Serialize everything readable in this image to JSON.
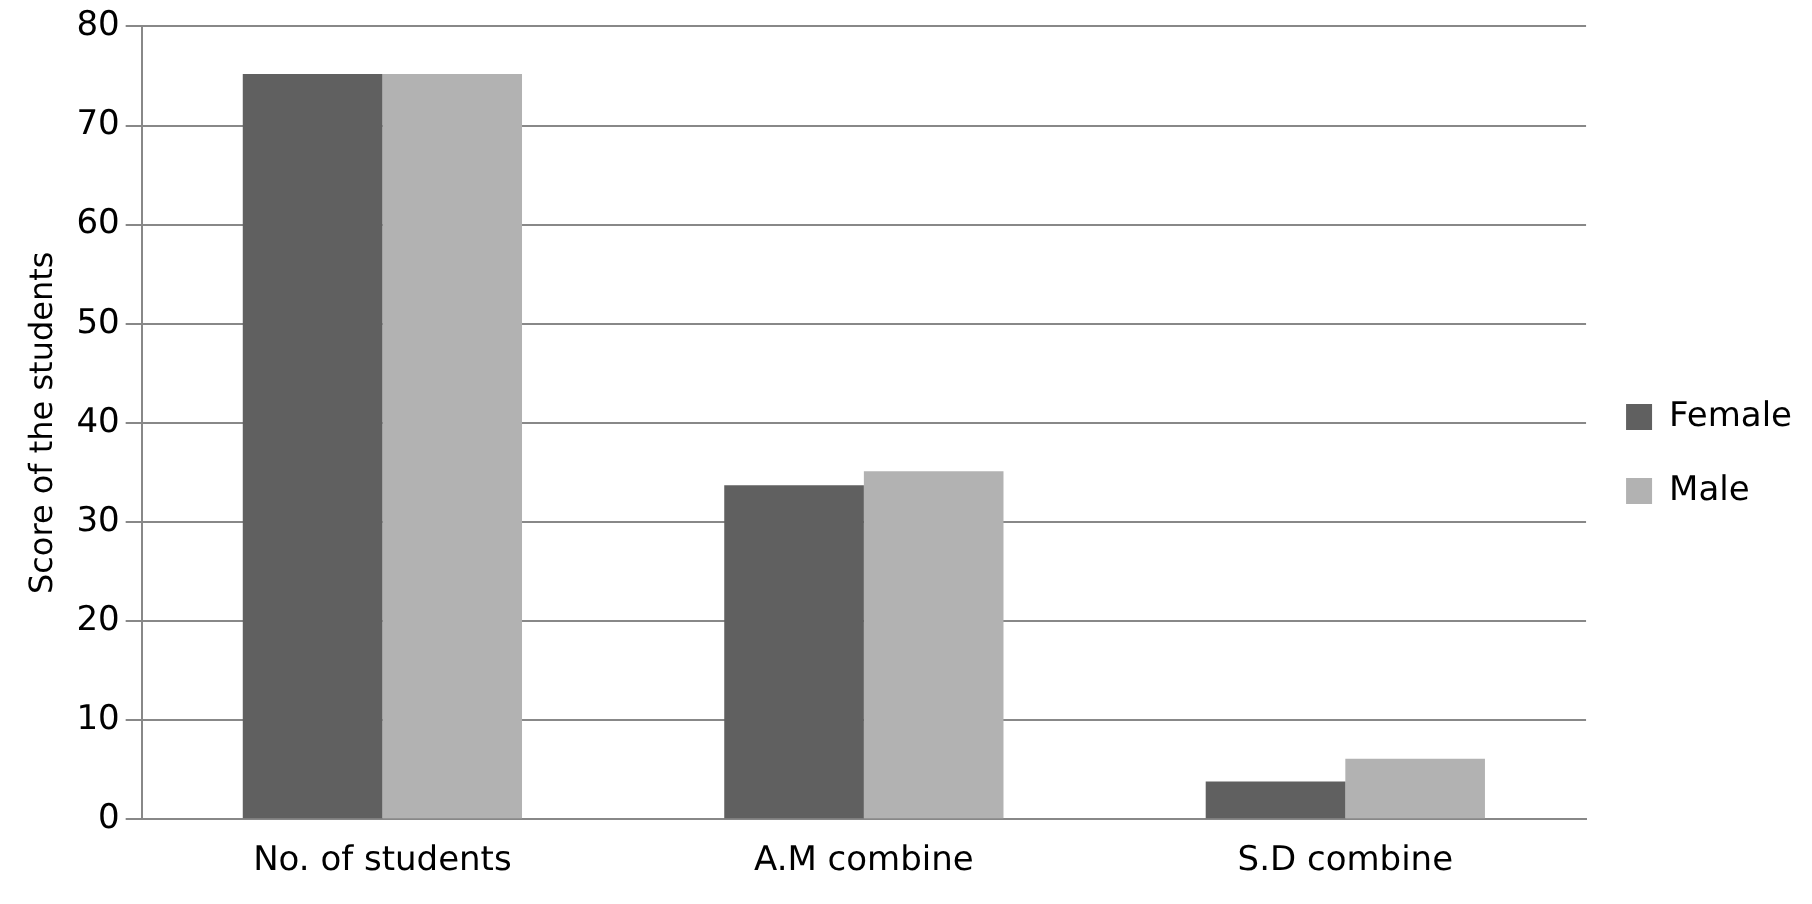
{
  "chart_data": {
    "type": "bar",
    "ylabel": "Score of the students",
    "categories": [
      "No. of students",
      "A.M combine",
      "S.D combine"
    ],
    "series": [
      {
        "name": "Female",
        "color": "#606060",
        "values": [
          75.2,
          33.7,
          3.8
        ]
      },
      {
        "name": "Male",
        "color": "#b2b2b2",
        "values": [
          75.2,
          35.1,
          6.1
        ]
      }
    ],
    "ylim": [
      0,
      80
    ],
    "yticks": [
      0,
      10,
      20,
      30,
      40,
      50,
      60,
      70,
      80
    ],
    "grid": "y",
    "legend": "right"
  }
}
